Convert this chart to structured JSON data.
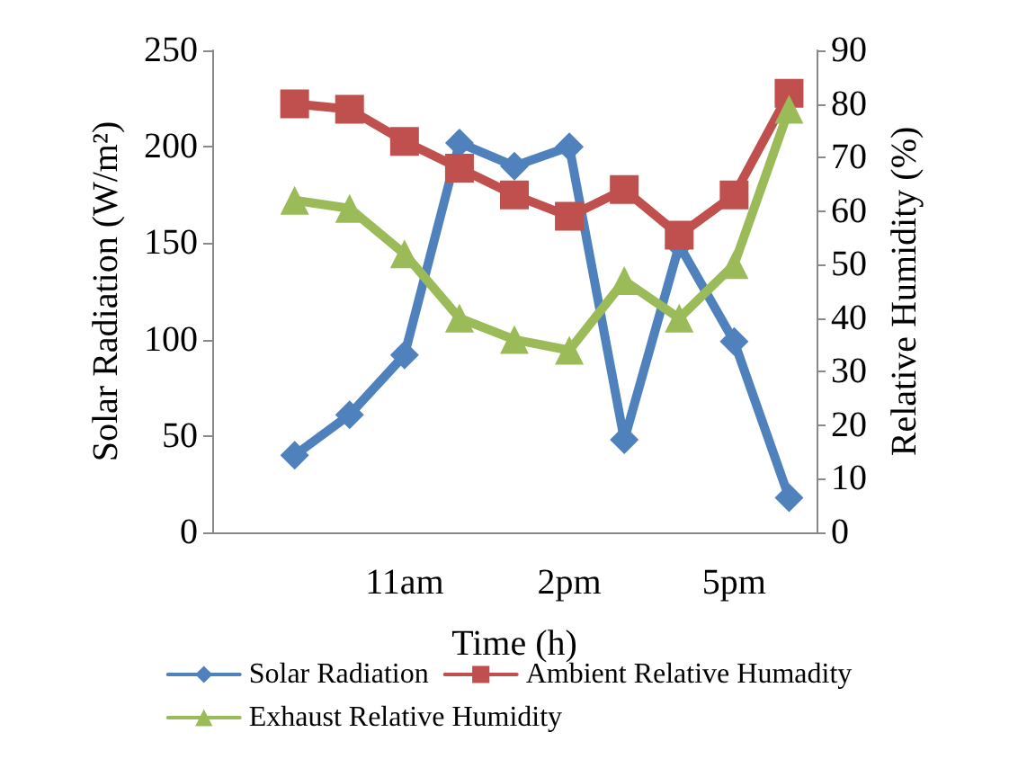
{
  "chart_data": {
    "type": "line",
    "xlabel": "Time (h)",
    "ylabel": "Solar Radiation (W/m²)",
    "y2label": "Relative Humidity (%)",
    "categories": [
      null,
      null,
      null,
      "11am",
      null,
      null,
      "2pm",
      null,
      null,
      "5pm",
      null
    ],
    "series": [
      {
        "name": "Solar Radiation",
        "color": "#4f81bd",
        "marker": "diamond",
        "values": [
          null,
          40,
          61,
          92,
          202,
          190,
          200,
          48,
          149,
          99,
          18
        ]
      },
      {
        "name": "Ambient Relative Humadity",
        "color": "#c0504d",
        "marker": "square",
        "axis": "y2",
        "values": [
          null,
          80,
          79,
          73,
          68,
          63,
          59,
          64,
          55.5,
          63,
          82
        ]
      },
      {
        "name": "Exhaust Relative Humidity",
        "color": "#9bbb59",
        "marker": "triangle",
        "axis": "y2",
        "values": [
          null,
          62,
          60.5,
          52,
          40,
          36,
          34,
          47,
          40,
          50,
          79
        ]
      }
    ],
    "ylim": [
      0,
      250
    ],
    "yticks": [
      0,
      50,
      100,
      150,
      200,
      250
    ],
    "y2lim": [
      0,
      90
    ],
    "y2ticks": [
      0,
      10,
      20,
      30,
      40,
      50,
      60,
      70,
      80,
      90
    ],
    "grid": false,
    "legend": "bottom",
    "line_style": "solid"
  }
}
